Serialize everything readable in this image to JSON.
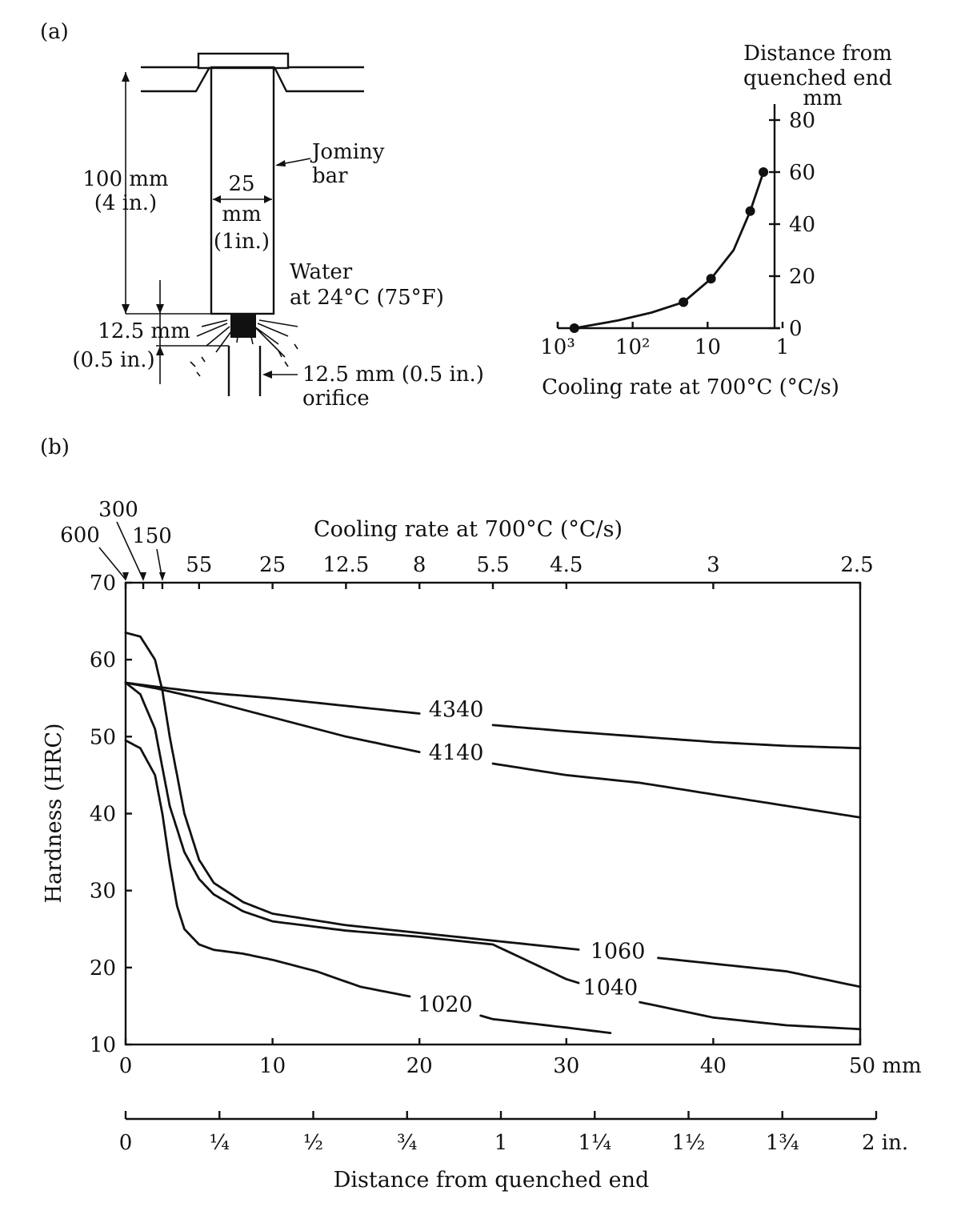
{
  "panel_a": {
    "label": "(a)",
    "diagram": {
      "length_label": [
        "100 mm",
        "(4 in.)"
      ],
      "diameter_label": [
        "25",
        "mm",
        "(1in.)"
      ],
      "bar_label": [
        "Jominy",
        "bar"
      ],
      "water_label": [
        "Water",
        "at 24°C (75°F)"
      ],
      "gap_label": [
        "12.5 mm",
        "(0.5 in.)"
      ],
      "orifice_label": [
        "12.5 mm (0.5 in.)",
        "orifice"
      ]
    },
    "inset": {
      "ylabel": [
        "Distance from",
        "quenched end",
        "mm"
      ],
      "xlabel": "Cooling rate at 700°C (°C/s)",
      "xticks": [
        "10³",
        "10²",
        "10",
        "1"
      ],
      "yticks": [
        "0",
        "20",
        "40",
        "60",
        "80"
      ]
    }
  },
  "panel_b": {
    "label": "(b)",
    "top_axis_title": "Cooling rate at 700°C (°C/s)",
    "top_ticks": [
      {
        "label": "600",
        "mm": 0
      },
      {
        "label": "300",
        "mm": 1.2
      },
      {
        "label": "150",
        "mm": 2.5
      },
      {
        "label": "55",
        "mm": 5
      },
      {
        "label": "25",
        "mm": 10
      },
      {
        "label": "12.5",
        "mm": 15
      },
      {
        "label": "8",
        "mm": 20
      },
      {
        "label": "5.5",
        "mm": 25
      },
      {
        "label": "4.5",
        "mm": 30
      },
      {
        "label": "3",
        "mm": 40
      },
      {
        "label": "2.5",
        "mm": 50
      }
    ],
    "ylabel": "Hardness (HRC)",
    "xlabel": "Distance from quenched end",
    "x_mm_ticks": [
      "0",
      "10",
      "20",
      "30",
      "40",
      "50 mm"
    ],
    "y_ticks": [
      "10",
      "20",
      "30",
      "40",
      "50",
      "60",
      "70"
    ],
    "x_in_ticks": [
      "0",
      "¼",
      "½",
      "¾",
      "1",
      "1¼",
      "1½",
      "1¾",
      "2 in."
    ]
  },
  "chart_data": [
    {
      "type": "line",
      "title": "",
      "xlabel": "Cooling rate at 700°C (°C/s)",
      "ylabel": "Distance from quenched end mm",
      "x_scale": "log",
      "x_reversed": true,
      "xlim": [
        1000,
        1
      ],
      "ylim": [
        0,
        80
      ],
      "series": [
        {
          "x": [
            600,
            155,
            56,
            21,
            9,
            4.5,
            2.7,
            1.8
          ],
          "y": [
            0,
            3,
            6,
            10,
            19,
            30,
            45,
            60
          ],
          "markers_at_x": [
            600,
            21,
            9,
            2.7,
            1.8
          ]
        }
      ]
    },
    {
      "type": "line",
      "title": "",
      "xlabel": "Distance from quenched end (mm)",
      "ylabel": "Hardness (HRC)",
      "xlim": [
        0,
        50
      ],
      "ylim": [
        10,
        70
      ],
      "grid": false,
      "series": [
        {
          "name": "4340",
          "x": [
            0,
            2,
            5,
            10,
            15,
            20,
            25,
            30,
            35,
            40,
            45,
            50
          ],
          "y": [
            57,
            56.5,
            55.8,
            55,
            54,
            53,
            51.5,
            50.7,
            50,
            49.3,
            48.8,
            48.5
          ]
        },
        {
          "name": "4140",
          "x": [
            0,
            2,
            5,
            10,
            15,
            20,
            25,
            30,
            35,
            40,
            45,
            50
          ],
          "y": [
            57,
            56.3,
            55,
            52.5,
            50,
            48,
            46.5,
            45,
            44,
            42.5,
            41,
            39.5
          ]
        },
        {
          "name": "1060",
          "x": [
            0,
            1,
            2,
            2.5,
            3,
            4,
            5,
            6,
            8,
            10,
            15,
            20,
            25,
            30,
            35,
            40,
            45,
            50
          ],
          "y": [
            63.5,
            63,
            60,
            56,
            50,
            40,
            34,
            31,
            28.5,
            27,
            25.5,
            24.5,
            23.5,
            22.5,
            21.5,
            20.5,
            19.5,
            17.5
          ]
        },
        {
          "name": "1040",
          "x": [
            0,
            1,
            2,
            2.5,
            3,
            4,
            5,
            6,
            8,
            10,
            15,
            20,
            25,
            30,
            35,
            40,
            45,
            50
          ],
          "y": [
            57,
            55.5,
            51,
            46,
            41,
            35,
            31.5,
            29.5,
            27.3,
            26,
            24.8,
            24,
            23,
            18.5,
            15.5,
            13.5,
            12.5,
            12
          ]
        },
        {
          "name": "1020",
          "x": [
            0,
            1,
            2,
            2.5,
            3,
            3.5,
            4,
            5,
            6,
            8,
            10,
            13,
            16,
            20,
            25,
            30,
            33
          ],
          "y": [
            49.5,
            48.5,
            45,
            40,
            33.5,
            28,
            25,
            23,
            22.3,
            21.8,
            21,
            19.5,
            17.5,
            16,
            13.3,
            12.2,
            11.5
          ]
        }
      ]
    }
  ]
}
